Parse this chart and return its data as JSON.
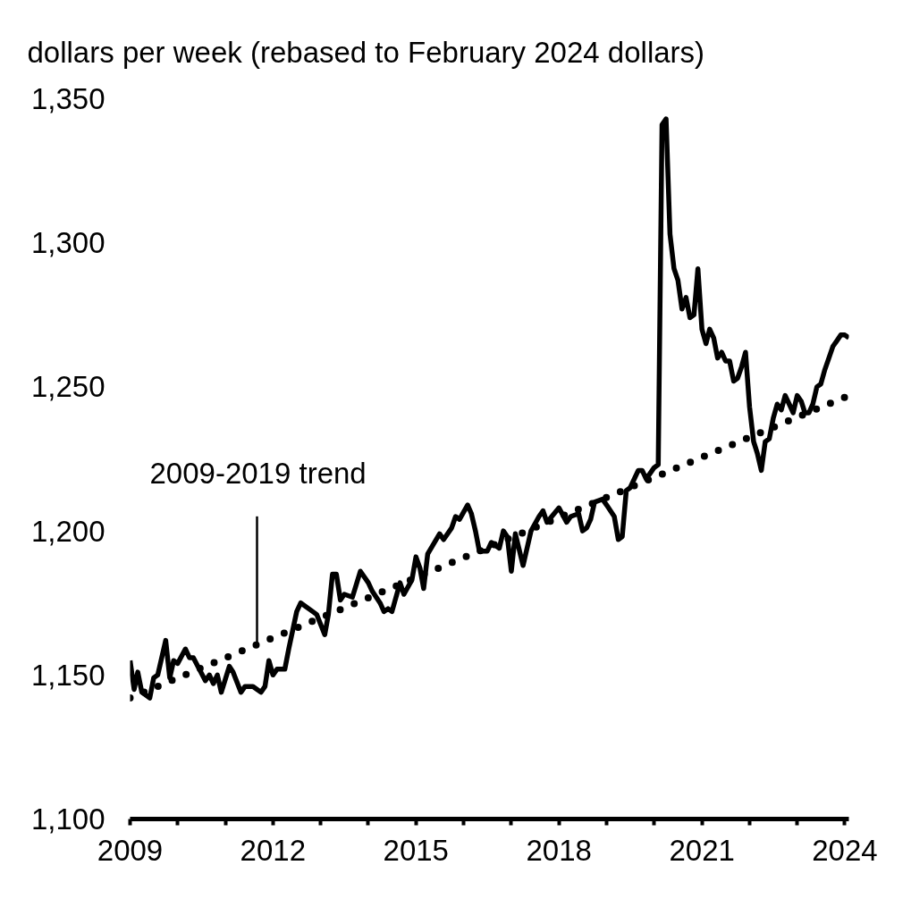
{
  "chart_data": {
    "type": "line",
    "ylabel": "dollars per week (rebased to February 2024 dollars)",
    "x": [
      "2009-01",
      "2009-02",
      "2009-03",
      "2009-04",
      "2009-06",
      "2009-07",
      "2009-08",
      "2009-10",
      "2009-11",
      "2009-12",
      "2010-01",
      "2010-03",
      "2010-04",
      "2010-05",
      "2010-08",
      "2010-09",
      "2010-10",
      "2010-11",
      "2010-12",
      "2011-02",
      "2011-03",
      "2011-05",
      "2011-06",
      "2011-07",
      "2011-08",
      "2011-10",
      "2011-11",
      "2011-12",
      "2012-01",
      "2012-02",
      "2012-04",
      "2012-05",
      "2012-07",
      "2012-08",
      "2012-11",
      "2012-12",
      "2013-02",
      "2013-03",
      "2013-04",
      "2013-05",
      "2013-06",
      "2013-07",
      "2013-09",
      "2013-11",
      "2014-01",
      "2014-02",
      "2014-04",
      "2014-05",
      "2014-06",
      "2014-07",
      "2014-09",
      "2014-10",
      "2014-12",
      "2015-01",
      "2015-02",
      "2015-03",
      "2015-04",
      "2015-07",
      "2015-08",
      "2015-10",
      "2015-11",
      "2015-12",
      "2016-02",
      "2016-03",
      "2016-04",
      "2016-05",
      "2016-07",
      "2016-08",
      "2016-10",
      "2016-11",
      "2016-12",
      "2017-01",
      "2017-02",
      "2017-04",
      "2017-06",
      "2017-08",
      "2017-09",
      "2017-10",
      "2018-01",
      "2018-03",
      "2018-04",
      "2018-06",
      "2018-07",
      "2018-08",
      "2018-09",
      "2018-10",
      "2018-12",
      "2019-01",
      "2019-03",
      "2019-04",
      "2019-05",
      "2019-06",
      "2019-07",
      "2019-09",
      "2019-10",
      "2019-11",
      "2019-12",
      "2020-01",
      "2020-02",
      "2020-03",
      "2020-04",
      "2020-05",
      "2020-06",
      "2020-07",
      "2020-08",
      "2020-09",
      "2020-10",
      "2020-11",
      "2020-12",
      "2021-01",
      "2021-02",
      "2021-03",
      "2021-04",
      "2021-05",
      "2021-06",
      "2021-07",
      "2021-08",
      "2021-09",
      "2021-10",
      "2021-11",
      "2021-12",
      "2022-01",
      "2022-02",
      "2022-03",
      "2022-04",
      "2022-05",
      "2022-06",
      "2022-07",
      "2022-08",
      "2022-09",
      "2022-10",
      "2022-11",
      "2022-12",
      "2023-01",
      "2023-02",
      "2023-03",
      "2023-04",
      "2023-05",
      "2023-06",
      "2023-07",
      "2023-08",
      "2023-09",
      "2023-10",
      "2023-11",
      "2023-12",
      "2024-01",
      "2024-02"
    ],
    "series": [
      {
        "color": "#000000",
        "line_style": "solid",
        "values": [
          1155,
          1145,
          1151,
          1144,
          1142,
          1149,
          1150,
          1162,
          1149,
          1155,
          1154,
          1159,
          1156,
          1156,
          1148,
          1150,
          1147,
          1150,
          1144,
          1153,
          1151,
          1144,
          1146,
          1146,
          1146,
          1144,
          1146,
          1155,
          1150,
          1152,
          1152,
          1159,
          1172,
          1175,
          1172,
          1171,
          1164,
          1171,
          1185,
          1185,
          1176,
          1178,
          1177,
          1186,
          1182,
          1179,
          1175,
          1172,
          1173,
          1172,
          1182,
          1178,
          1183,
          1191,
          1187,
          1180,
          1192,
          1199,
          1197,
          1201,
          1205,
          1204,
          1209,
          1206,
          1200,
          1193,
          1193,
          1196,
          1194,
          1200,
          1198,
          1186,
          1199,
          1188,
          1200,
          1205,
          1207,
          1203,
          1208,
          1203,
          1205,
          1206,
          1200,
          1201,
          1204,
          1210,
          1211,
          1209,
          1205,
          1197,
          1198,
          1214,
          1215,
          1221,
          1221,
          1218,
          1220,
          1222,
          1223,
          1341,
          1343,
          1303,
          1291,
          1287,
          1277,
          1281,
          1274,
          1275,
          1291,
          1270,
          1265,
          1270,
          1267,
          1260,
          1262,
          1259,
          1259,
          1252,
          1253,
          1257,
          1262,
          1243,
          1231,
          1227,
          1221,
          1231,
          1232,
          1239,
          1244,
          1242,
          1247,
          1244,
          1241,
          1247,
          1245,
          1241,
          1241,
          1244,
          1250,
          1251,
          1256,
          1260,
          1264,
          1266,
          1268,
          1268,
          1267
        ]
      },
      {
        "color": "#000000",
        "line_style": "dotted",
        "x": [
          "2009-01",
          "2024-02"
        ],
        "values": [
          1142,
          1247
        ]
      }
    ],
    "xlim": [
      "2009-01",
      "2024-02"
    ],
    "ylim": [
      1100,
      1350
    ],
    "xticks": [
      "2009",
      {
        "value": "2010",
        "label": null
      },
      {
        "value": "2011",
        "label": null
      },
      "2012",
      {
        "value": "2013",
        "label": null
      },
      {
        "value": "2014",
        "label": null
      },
      "2015",
      {
        "value": "2016",
        "label": null
      },
      {
        "value": "2017",
        "label": null
      },
      "2018",
      {
        "value": "2019",
        "label": null
      },
      {
        "value": "2020",
        "label": null
      },
      "2021",
      {
        "value": "2022",
        "label": null
      },
      {
        "value": "2023",
        "label": null
      },
      "2024"
    ],
    "yticks": [
      {
        "value": 1100,
        "label": "1,100"
      },
      {
        "value": 1150,
        "label": "1,150"
      },
      {
        "value": 1200,
        "label": "1,200"
      },
      {
        "value": 1250,
        "label": "1,250"
      },
      {
        "value": 1300,
        "label": "1,300"
      },
      {
        "value": 1350,
        "label": "1,350"
      }
    ],
    "annotations": [
      {
        "text": "2009-2019 trend",
        "x": "2011-09",
        "y": 1161
      }
    ]
  }
}
